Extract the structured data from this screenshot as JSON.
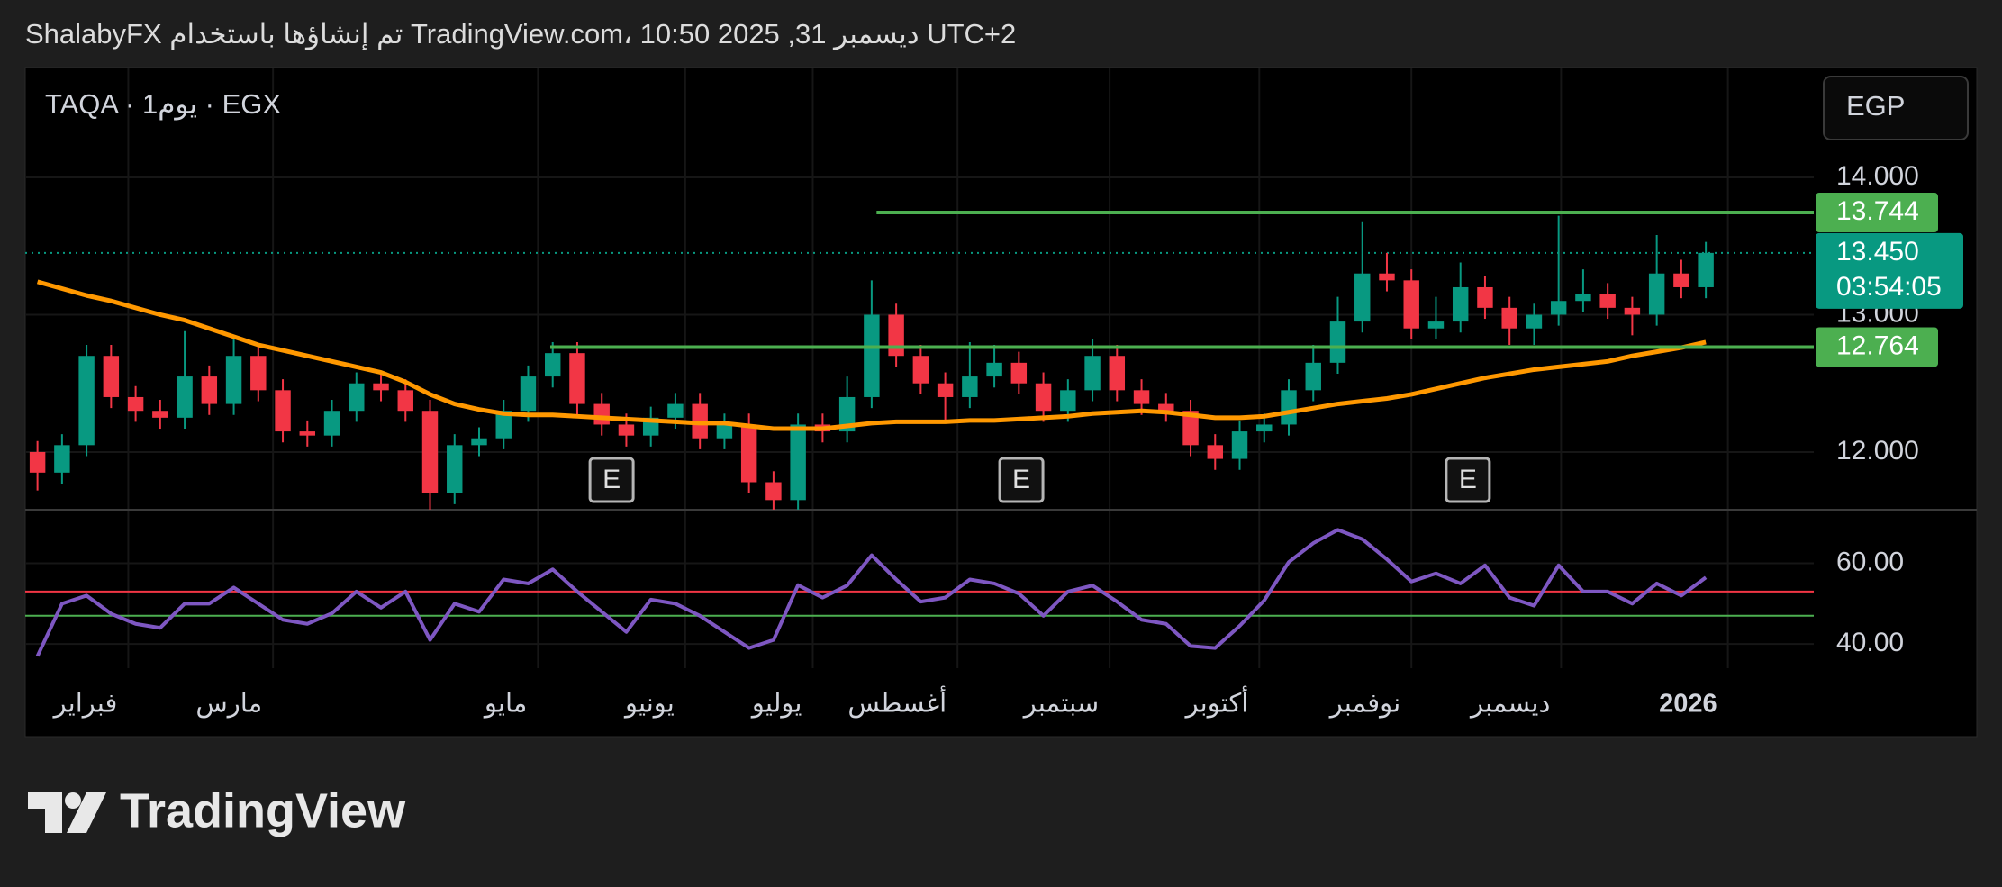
{
  "header": {
    "caption": "ShalabyFX تم إنشاؤها باستخدام TradingView.com، 10:50 2025 ,31 ديسمبر UTC+2"
  },
  "chart_data": {
    "type": "candlestick",
    "symbol_label": "TAQA · 1يوم · EGX",
    "currency": "EGP",
    "open": [
      12.0,
      11.85,
      12.05,
      12.7,
      12.4,
      12.3,
      12.25,
      12.55,
      12.35,
      12.7,
      12.45,
      12.15,
      12.12,
      12.3,
      12.5,
      12.45,
      12.3,
      11.7,
      12.05,
      12.1,
      12.3,
      12.55,
      12.72,
      12.35,
      12.2,
      12.12,
      12.25,
      12.35,
      12.1,
      12.2,
      11.78,
      11.65,
      12.2,
      12.15,
      12.4,
      13.0,
      12.7,
      12.5,
      12.4,
      12.55,
      12.65,
      12.5,
      12.3,
      12.45,
      12.7,
      12.45,
      12.35,
      12.3,
      12.05,
      11.95,
      12.15,
      12.2,
      12.45,
      12.65,
      12.95,
      13.3,
      13.25,
      12.9,
      12.95,
      13.2,
      13.05,
      12.9,
      13.0,
      13.1,
      13.15,
      13.05,
      13.0,
      13.3,
      13.2
    ],
    "high": [
      12.08,
      12.13,
      12.78,
      12.78,
      12.48,
      12.38,
      12.88,
      12.63,
      12.85,
      12.78,
      12.53,
      12.23,
      12.38,
      12.58,
      12.58,
      12.53,
      12.38,
      12.13,
      12.18,
      12.38,
      12.63,
      12.8,
      12.8,
      12.43,
      12.28,
      12.33,
      12.43,
      12.43,
      12.28,
      12.28,
      11.86,
      12.28,
      12.28,
      12.55,
      13.25,
      13.08,
      12.78,
      12.58,
      12.8,
      12.78,
      12.73,
      12.58,
      12.53,
      12.82,
      12.78,
      12.53,
      12.43,
      12.38,
      12.13,
      12.23,
      12.28,
      12.53,
      12.78,
      13.13,
      13.68,
      13.45,
      13.33,
      13.13,
      13.38,
      13.28,
      13.13,
      13.08,
      13.72,
      13.33,
      13.23,
      13.13,
      13.58,
      13.4,
      13.53
    ],
    "low": [
      11.72,
      11.77,
      11.97,
      12.32,
      12.22,
      12.17,
      12.17,
      12.27,
      12.27,
      12.37,
      12.07,
      12.04,
      12.04,
      12.22,
      12.37,
      12.22,
      11.58,
      11.62,
      11.97,
      12.02,
      12.22,
      12.47,
      12.27,
      12.12,
      12.04,
      12.04,
      12.17,
      12.02,
      12.02,
      11.7,
      11.57,
      11.57,
      12.07,
      12.07,
      12.32,
      12.62,
      12.42,
      12.22,
      12.32,
      12.47,
      12.42,
      12.22,
      12.22,
      12.37,
      12.37,
      12.27,
      12.22,
      11.97,
      11.87,
      11.87,
      12.07,
      12.12,
      12.37,
      12.57,
      12.87,
      13.17,
      12.82,
      12.82,
      12.87,
      12.97,
      12.78,
      12.78,
      12.92,
      13.02,
      12.97,
      12.85,
      12.92,
      13.12,
      13.12
    ],
    "close": [
      11.85,
      12.05,
      12.7,
      12.4,
      12.3,
      12.25,
      12.55,
      12.35,
      12.7,
      12.45,
      12.15,
      12.12,
      12.3,
      12.5,
      12.45,
      12.3,
      11.7,
      12.05,
      12.1,
      12.3,
      12.55,
      12.72,
      12.35,
      12.2,
      12.12,
      12.25,
      12.35,
      12.1,
      12.2,
      11.78,
      11.65,
      12.2,
      12.15,
      12.4,
      13.0,
      12.7,
      12.5,
      12.4,
      12.55,
      12.65,
      12.5,
      12.3,
      12.45,
      12.7,
      12.45,
      12.35,
      12.3,
      12.05,
      11.95,
      12.15,
      12.2,
      12.45,
      12.65,
      12.95,
      13.3,
      13.25,
      12.9,
      12.95,
      13.2,
      13.05,
      12.9,
      13.0,
      13.1,
      13.15,
      13.05,
      13.0,
      13.3,
      13.2,
      13.45
    ],
    "colors": {
      "up": "#089981",
      "down": "#f23645"
    },
    "moving_average": {
      "color": "#ff9800",
      "values": [
        13.24,
        13.19,
        13.14,
        13.1,
        13.05,
        13.0,
        12.96,
        12.9,
        12.84,
        12.78,
        12.74,
        12.7,
        12.66,
        12.62,
        12.58,
        12.51,
        12.42,
        12.35,
        12.31,
        12.28,
        12.27,
        12.27,
        12.26,
        12.25,
        12.24,
        12.23,
        12.22,
        12.21,
        12.21,
        12.19,
        12.17,
        12.17,
        12.17,
        12.19,
        12.21,
        12.22,
        12.22,
        12.22,
        12.23,
        12.23,
        12.24,
        12.25,
        12.26,
        12.28,
        12.29,
        12.3,
        12.29,
        12.27,
        12.25,
        12.25,
        12.26,
        12.29,
        12.32,
        12.35,
        12.37,
        12.39,
        12.42,
        12.46,
        12.5,
        12.54,
        12.57,
        12.6,
        12.62,
        12.64,
        12.66,
        12.7,
        12.73,
        12.76,
        12.8
      ]
    },
    "levels": [
      {
        "value": 13.744,
        "from": 34.2,
        "color": "#4caf50"
      },
      {
        "value": 12.764,
        "from": 20.9,
        "color": "#4caf50"
      }
    ],
    "current_price": {
      "value": 13.45,
      "label": "13.450",
      "countdown": "03:54:05",
      "color": "#089981"
    },
    "ylim": [
      11.58,
      14.8
    ],
    "yticks": [
      {
        "value": 12,
        "label": "12.000"
      },
      {
        "value": 13,
        "label": "13.000"
      },
      {
        "value": 14,
        "label": "14.000"
      }
    ],
    "xlim": [
      -0.5,
      72.4
    ],
    "xticks": [
      {
        "value": 3.7,
        "label": "فبراير"
      },
      {
        "value": 9.6,
        "label": "مارس"
      },
      {
        "value": 20.4,
        "label": "مايو"
      },
      {
        "value": 26.4,
        "label": "يونيو"
      },
      {
        "value": 31.6,
        "label": "يوليو"
      },
      {
        "value": 37.5,
        "label": "أغسطس"
      },
      {
        "value": 43.7,
        "label": "سبتمبر"
      },
      {
        "value": 49.8,
        "label": "أكتوبر"
      },
      {
        "value": 56.0,
        "label": "نوفمبر"
      },
      {
        "value": 62.1,
        "label": "ديسمبر"
      },
      {
        "value": 68.9,
        "label": "2026"
      }
    ],
    "grid": true,
    "earnings": {
      "label": "E",
      "x": [
        23.4,
        40.1,
        58.3
      ]
    },
    "rsi": {
      "color": "#7e57c2",
      "values": [
        37,
        50,
        52,
        47.5,
        45,
        44,
        50,
        50,
        54,
        50,
        46,
        45,
        47.6,
        53,
        49,
        53,
        41,
        50,
        48,
        56,
        55,
        58.5,
        53,
        48,
        43,
        51,
        50,
        47,
        43,
        39,
        41,
        54.6,
        51.5,
        54.5,
        62,
        56,
        50.5,
        51.5,
        56,
        55,
        52.5,
        47,
        53,
        54.5,
        50.5,
        46,
        45,
        39.5,
        39,
        44.5,
        50.8,
        60.3,
        65,
        68.3,
        66,
        61,
        55.5,
        57.5,
        55,
        59.5,
        51.5,
        49.5,
        59.5,
        53,
        53,
        50,
        55,
        52,
        56.5
      ],
      "ylim": [
        34,
        73.3
      ],
      "yticks": [
        {
          "value": 40,
          "label": "40.00"
        },
        {
          "value": 60,
          "label": "60.00"
        }
      ],
      "upper": {
        "value": 53,
        "color": "#f23645"
      },
      "lower": {
        "value": 47,
        "color": "#4caf50"
      }
    }
  },
  "footer": {
    "logo_text": "TradingView"
  }
}
